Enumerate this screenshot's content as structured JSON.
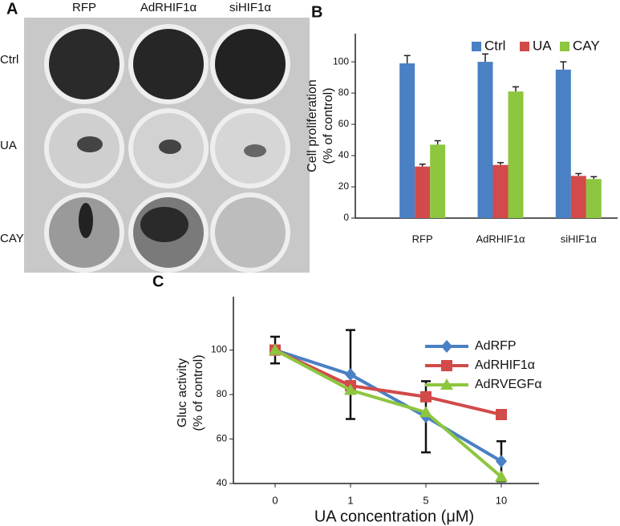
{
  "panel_a": {
    "label": "A",
    "columns": [
      "RFP",
      "AdRHIF1α",
      "siHIF1α"
    ],
    "rows": [
      "Ctrl",
      "UA",
      "CAY"
    ]
  },
  "chart_data": [
    {
      "type": "bar",
      "panel_label": "B",
      "ylabel": [
        "Cell proliferation",
        "(% of control)"
      ],
      "categories": [
        "RFP",
        "AdRHIF1α",
        "siHIF1α"
      ],
      "series": [
        {
          "name": "Ctrl",
          "color": "#4a80c4",
          "values": [
            99,
            100,
            95
          ],
          "errors": [
            5,
            5,
            5
          ]
        },
        {
          "name": "UA",
          "color": "#d24a4a",
          "values": [
            33,
            34,
            27
          ],
          "errors": [
            1.5,
            1.5,
            1.5
          ]
        },
        {
          "name": "CAY",
          "color": "#8dc63f",
          "values": [
            47,
            81,
            25
          ],
          "errors": [
            2.5,
            3,
            1.5
          ]
        }
      ],
      "ylim": [
        0,
        118
      ],
      "yticks": [
        0,
        20,
        40,
        60,
        80,
        100
      ],
      "legend": "top-right"
    },
    {
      "type": "line",
      "panel_label": "C",
      "xlabel": "UA concentration (μM)",
      "ylabel": [
        "Gluc activity",
        "(% of control)"
      ],
      "categories": [
        "0",
        "1",
        "5",
        "10"
      ],
      "series": [
        {
          "name": "AdRFP",
          "color": "#4a80c4",
          "marker": "diamond",
          "values": [
            100,
            89,
            70,
            50
          ],
          "errors": [
            6,
            20,
            16,
            9
          ]
        },
        {
          "name": "AdRHIF1α",
          "color": "#d24a4a",
          "marker": "square",
          "values": [
            100,
            84,
            79,
            71
          ]
        },
        {
          "name": "AdRVEGFα",
          "color": "#8dc63f",
          "marker": "triangle",
          "values": [
            100,
            82,
            72,
            43
          ]
        }
      ],
      "ylim": [
        40,
        124
      ],
      "yticks": [
        40,
        60,
        80,
        100
      ],
      "legend": "top-right"
    }
  ]
}
